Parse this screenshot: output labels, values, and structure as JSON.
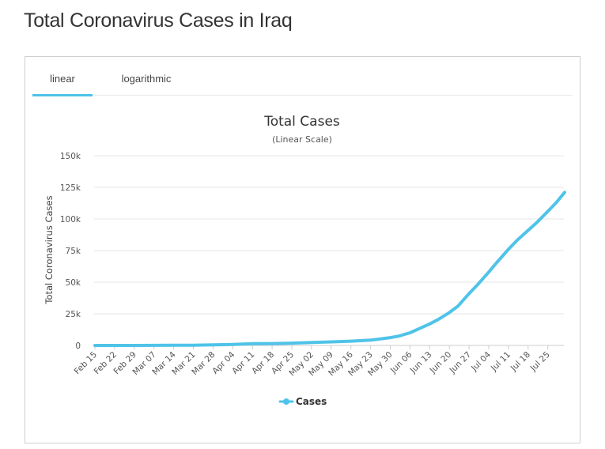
{
  "page": {
    "title": "Total Coronavirus Cases in Iraq"
  },
  "tabs": [
    {
      "label": "linear",
      "active": true
    },
    {
      "label": "logarithmic",
      "active": false
    }
  ],
  "colors": {
    "series": "#4fc3e8",
    "tab_underline": "#4fc3e8",
    "gridline": "#e6e6e6"
  },
  "chart_data": {
    "type": "line",
    "title": "Total Cases",
    "subtitle": "(Linear Scale)",
    "xlabel": "",
    "ylabel": "Total Coronavirus Cases",
    "ylim": [
      0,
      150000
    ],
    "y_ticks": [
      0,
      25000,
      50000,
      75000,
      100000,
      125000,
      150000
    ],
    "y_tick_labels": [
      "0",
      "25k",
      "50k",
      "75k",
      "100k",
      "125k",
      "150k"
    ],
    "x_tick_labels": [
      "Feb 15",
      "Feb 22",
      "Feb 29",
      "Mar 07",
      "Mar 14",
      "Mar 21",
      "Mar 28",
      "Apr 04",
      "Apr 11",
      "Apr 18",
      "Apr 25",
      "May 02",
      "May 09",
      "May 16",
      "May 23",
      "May 30",
      "Jun 06",
      "Jun 13",
      "Jun 20",
      "Jun 27",
      "Jul 04",
      "Jul 11",
      "Jul 18",
      "Jul 25"
    ],
    "grid": true,
    "legend_position": "bottom-center",
    "series": [
      {
        "name": "Cases",
        "x": [
          "2020-02-15",
          "2020-02-22",
          "2020-02-29",
          "2020-03-07",
          "2020-03-14",
          "2020-03-21",
          "2020-03-28",
          "2020-04-04",
          "2020-04-11",
          "2020-04-18",
          "2020-04-25",
          "2020-05-02",
          "2020-05-09",
          "2020-05-16",
          "2020-05-23",
          "2020-05-30",
          "2020-06-02",
          "2020-06-06",
          "2020-06-09",
          "2020-06-13",
          "2020-06-16",
          "2020-06-20",
          "2020-06-23",
          "2020-06-27",
          "2020-06-30",
          "2020-07-04",
          "2020-07-07",
          "2020-07-11",
          "2020-07-14",
          "2020-07-18",
          "2020-07-21",
          "2020-07-25",
          "2020-07-28",
          "2020-07-31"
        ],
        "values": [
          0,
          0,
          0,
          54,
          110,
          214,
          458,
          820,
          1350,
          1500,
          1800,
          2300,
          2800,
          3400,
          4200,
          6200,
          7400,
          10000,
          13000,
          17000,
          20500,
          26000,
          31000,
          41000,
          48000,
          58000,
          66000,
          76000,
          83000,
          91000,
          97000,
          106000,
          113000,
          121000
        ]
      }
    ]
  }
}
